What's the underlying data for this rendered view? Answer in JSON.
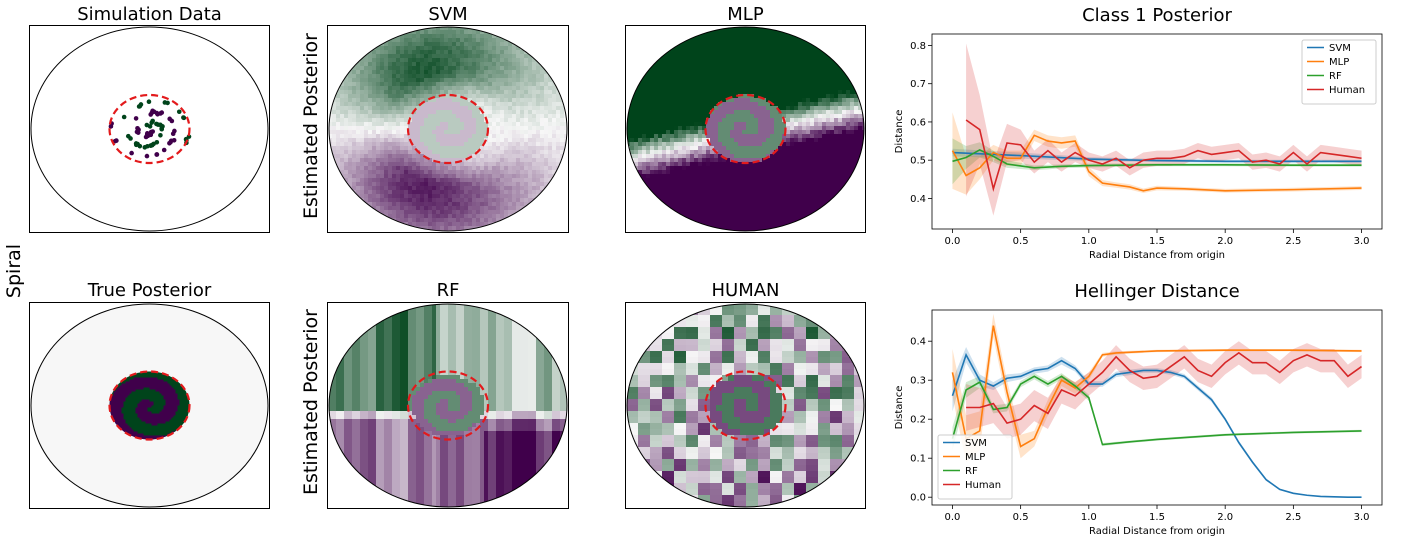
{
  "titles": {
    "sim": "Simulation Data",
    "svm": "SVM",
    "mlp": "MLP",
    "true": "True Posterior",
    "rf": "RF",
    "human": "HUMAN"
  },
  "row_label": "Spiral",
  "side_label": "Estimated Posterior",
  "colors": {
    "green": "#00441b",
    "purple": "#40004b",
    "red_circle": "#e31a1c",
    "neutral": "#f7f7f7",
    "svm": "#1f77b4",
    "mlp": "#ff7f0e",
    "rf": "#2ca02c",
    "human": "#d62728"
  },
  "chart_data": [
    {
      "type": "line",
      "title": "Class 1 Posterior",
      "xlabel": "Radial Distance from origin",
      "ylabel": "Distance",
      "xlim": [
        -0.15,
        3.15
      ],
      "ylim": [
        0.32,
        0.83
      ],
      "xticks": [
        0.0,
        0.5,
        1.0,
        1.5,
        2.0,
        2.5,
        3.0
      ],
      "yticks": [
        0.4,
        0.5,
        0.6,
        0.7,
        0.8
      ],
      "legend_position": "top-right",
      "series": [
        {
          "name": "SVM",
          "color": "#1f77b4",
          "x": [
            0.0,
            0.5,
            1.0,
            1.5,
            2.0,
            2.5,
            3.0
          ],
          "y": [
            0.52,
            0.512,
            0.503,
            0.499,
            0.497,
            0.497,
            0.497
          ],
          "band": [
            0.01,
            0.008,
            0.005,
            0.004,
            0.004,
            0.004,
            0.004
          ]
        },
        {
          "name": "MLP",
          "color": "#ff7f0e",
          "x": [
            0.0,
            0.1,
            0.2,
            0.3,
            0.4,
            0.5,
            0.6,
            0.7,
            0.8,
            0.9,
            1.0,
            1.1,
            1.2,
            1.3,
            1.4,
            1.5,
            1.7,
            2.0,
            2.5,
            3.0
          ],
          "y": [
            0.525,
            0.46,
            0.48,
            0.52,
            0.505,
            0.505,
            0.565,
            0.55,
            0.545,
            0.55,
            0.47,
            0.44,
            0.435,
            0.43,
            0.42,
            0.427,
            0.425,
            0.42,
            0.423,
            0.427
          ],
          "band": [
            0.1,
            0.05,
            0.03,
            0.02,
            0.02,
            0.02,
            0.015,
            0.015,
            0.015,
            0.015,
            0.012,
            0.008,
            0.007,
            0.007,
            0.006,
            0.006,
            0.005,
            0.005,
            0.005,
            0.005
          ]
        },
        {
          "name": "RF",
          "color": "#2ca02c",
          "x": [
            0.0,
            0.1,
            0.2,
            0.3,
            0.4,
            0.5,
            0.6,
            0.7,
            0.8,
            1.0,
            1.5,
            2.0,
            2.5,
            3.0
          ],
          "y": [
            0.497,
            0.507,
            0.527,
            0.51,
            0.49,
            0.485,
            0.48,
            0.482,
            0.484,
            0.486,
            0.488,
            0.488,
            0.487,
            0.487
          ],
          "band": [
            0.06,
            0.03,
            0.02,
            0.015,
            0.01,
            0.008,
            0.006,
            0.006,
            0.005,
            0.005,
            0.004,
            0.004,
            0.004,
            0.004
          ]
        },
        {
          "name": "Human",
          "color": "#d62728",
          "x": [
            0.1,
            0.2,
            0.3,
            0.4,
            0.5,
            0.6,
            0.7,
            0.8,
            0.9,
            1.0,
            1.1,
            1.2,
            1.3,
            1.4,
            1.5,
            1.6,
            1.7,
            1.8,
            1.9,
            2.0,
            2.1,
            2.2,
            2.3,
            2.4,
            2.5,
            2.6,
            2.7,
            2.8,
            2.9,
            3.0
          ],
          "y": [
            0.605,
            0.58,
            0.425,
            0.545,
            0.54,
            0.495,
            0.525,
            0.495,
            0.52,
            0.5,
            0.49,
            0.505,
            0.48,
            0.5,
            0.505,
            0.505,
            0.51,
            0.525,
            0.515,
            0.52,
            0.525,
            0.495,
            0.5,
            0.49,
            0.52,
            0.49,
            0.52,
            0.515,
            0.51,
            0.505
          ],
          "band": [
            0.2,
            0.09,
            0.07,
            0.05,
            0.04,
            0.03,
            0.03,
            0.025,
            0.025,
            0.02,
            0.02,
            0.02,
            0.02,
            0.02,
            0.02,
            0.02,
            0.02,
            0.02,
            0.02,
            0.02,
            0.02,
            0.02,
            0.02,
            0.02,
            0.02,
            0.02,
            0.02,
            0.02,
            0.02,
            0.02
          ]
        }
      ]
    },
    {
      "type": "line",
      "title": "Hellinger Distance",
      "xlabel": "Radial Distance from origin",
      "ylabel": "Distance",
      "xlim": [
        -0.15,
        3.15
      ],
      "ylim": [
        -0.02,
        0.48
      ],
      "xticks": [
        0.0,
        0.5,
        1.0,
        1.5,
        2.0,
        2.5,
        3.0
      ],
      "yticks": [
        0.0,
        0.1,
        0.2,
        0.3,
        0.4
      ],
      "legend_position": "bottom-left",
      "series": [
        {
          "name": "SVM",
          "color": "#1f77b4",
          "x": [
            0.0,
            0.1,
            0.2,
            0.3,
            0.4,
            0.5,
            0.6,
            0.7,
            0.8,
            0.9,
            1.0,
            1.1,
            1.2,
            1.3,
            1.4,
            1.5,
            1.6,
            1.7,
            1.8,
            1.9,
            2.0,
            2.1,
            2.2,
            2.3,
            2.4,
            2.5,
            2.6,
            2.7,
            2.8,
            2.9,
            3.0
          ],
          "y": [
            0.26,
            0.365,
            0.3,
            0.285,
            0.305,
            0.31,
            0.325,
            0.33,
            0.35,
            0.33,
            0.29,
            0.29,
            0.315,
            0.32,
            0.325,
            0.325,
            0.32,
            0.31,
            0.28,
            0.25,
            0.2,
            0.14,
            0.09,
            0.045,
            0.02,
            0.01,
            0.005,
            0.002,
            0.001,
            0.0,
            0.0
          ],
          "band": [
            0.04,
            0.02,
            0.015,
            0.01,
            0.01,
            0.008,
            0.008,
            0.008,
            0.01,
            0.008,
            0.008,
            0.007,
            0.007,
            0.007,
            0.006,
            0.006,
            0.006,
            0.006,
            0.006,
            0.006,
            0.005,
            0.005,
            0.004,
            0.003,
            0.002,
            0.001,
            0.001,
            0.001,
            0.0,
            0.0,
            0.0
          ]
        },
        {
          "name": "MLP",
          "color": "#ff7f0e",
          "x": [
            0.0,
            0.1,
            0.2,
            0.3,
            0.4,
            0.5,
            0.6,
            0.7,
            0.8,
            0.9,
            1.0,
            1.1,
            1.2,
            1.5,
            2.0,
            2.5,
            3.0
          ],
          "y": [
            0.32,
            0.15,
            0.17,
            0.44,
            0.27,
            0.13,
            0.15,
            0.23,
            0.3,
            0.28,
            0.31,
            0.365,
            0.37,
            0.375,
            0.377,
            0.377,
            0.375
          ],
          "band": [
            0.06,
            0.06,
            0.05,
            0.03,
            0.03,
            0.03,
            0.02,
            0.02,
            0.015,
            0.015,
            0.01,
            0.005,
            0.004,
            0.003,
            0.003,
            0.003,
            0.003
          ]
        },
        {
          "name": "RF",
          "color": "#2ca02c",
          "x": [
            0.0,
            0.1,
            0.2,
            0.3,
            0.4,
            0.5,
            0.6,
            0.7,
            0.8,
            0.9,
            1.0,
            1.1,
            1.3,
            1.5,
            1.7,
            2.0,
            2.5,
            3.0
          ],
          "y": [
            0.15,
            0.275,
            0.295,
            0.225,
            0.23,
            0.29,
            0.31,
            0.29,
            0.31,
            0.285,
            0.255,
            0.135,
            0.142,
            0.148,
            0.153,
            0.16,
            0.166,
            0.17
          ],
          "band": [
            0.03,
            0.02,
            0.015,
            0.01,
            0.01,
            0.008,
            0.008,
            0.008,
            0.008,
            0.008,
            0.008,
            0.004,
            0.003,
            0.003,
            0.003,
            0.003,
            0.003,
            0.003
          ]
        },
        {
          "name": "Human",
          "color": "#d62728",
          "x": [
            0.1,
            0.2,
            0.3,
            0.4,
            0.5,
            0.6,
            0.7,
            0.8,
            0.9,
            1.0,
            1.1,
            1.2,
            1.3,
            1.4,
            1.5,
            1.6,
            1.7,
            1.8,
            1.9,
            2.0,
            2.1,
            2.2,
            2.3,
            2.4,
            2.5,
            2.6,
            2.7,
            2.8,
            2.9,
            3.0
          ],
          "y": [
            0.23,
            0.23,
            0.24,
            0.19,
            0.2,
            0.235,
            0.215,
            0.275,
            0.26,
            0.29,
            0.32,
            0.36,
            0.325,
            0.305,
            0.31,
            0.335,
            0.36,
            0.325,
            0.31,
            0.345,
            0.37,
            0.345,
            0.345,
            0.32,
            0.35,
            0.365,
            0.35,
            0.35,
            0.31,
            0.335
          ],
          "band": [
            0.06,
            0.05,
            0.05,
            0.04,
            0.04,
            0.04,
            0.04,
            0.035,
            0.035,
            0.03,
            0.03,
            0.03,
            0.03,
            0.03,
            0.03,
            0.03,
            0.03,
            0.03,
            0.03,
            0.03,
            0.03,
            0.03,
            0.03,
            0.03,
            0.03,
            0.03,
            0.03,
            0.03,
            0.03,
            0.03
          ]
        }
      ]
    }
  ]
}
